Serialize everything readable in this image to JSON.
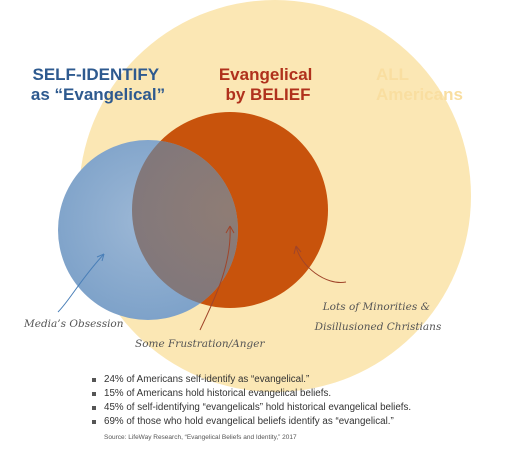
{
  "labels": {
    "self_identify_line1": "SELF-IDENTIFY",
    "self_identify_line2": "as “Evangelical”",
    "belief_line1": "Evangelical",
    "belief_line2": "by BELIEF",
    "all_line1": "ALL",
    "all_line2": "Americans"
  },
  "annotations": {
    "media": "Media’s Obsession",
    "frustration": "Some Frustration/Anger",
    "minorities_line1": "Lots of Minorities &",
    "minorities_line2": "Disillusioned Christians"
  },
  "stats": [
    "24% of Americans self-identify as “evangelical.”",
    "15% of Americans hold historical evangelical beliefs.",
    "45% of self-identifying “evangelicals” hold historical evangelical beliefs.",
    "69% of those who hold evangelical beliefs identify as “evangelical.”"
  ],
  "source": "Source: LifeWay Research, “Evangelical Beliefs and Identity,” 2017",
  "colors": {
    "all_americans": "#fbe7b4",
    "all_label": "#f9dea0",
    "self_identify": "#84a7cc",
    "self_label": "#2e5a8f",
    "belief": "#c8530c",
    "belief_label": "#b0311c",
    "overlap": "#8a7872"
  }
}
